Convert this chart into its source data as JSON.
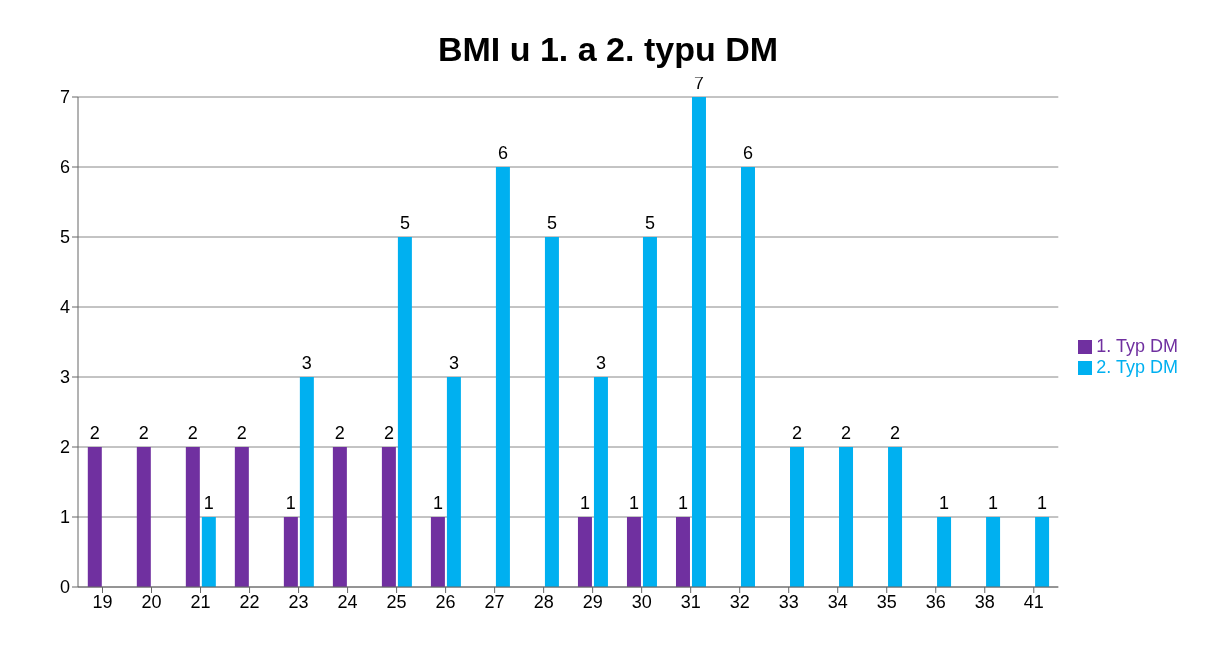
{
  "chart_data": {
    "type": "bar",
    "title": "BMI u 1. a 2. typu DM",
    "categories": [
      "19",
      "20",
      "21",
      "22",
      "23",
      "24",
      "25",
      "26",
      "27",
      "28",
      "29",
      "30",
      "31",
      "32",
      "33",
      "34",
      "35",
      "36",
      "38",
      "41"
    ],
    "series": [
      {
        "name": "1. Typ DM",
        "color": "#7030a0",
        "values": [
          2,
          2,
          2,
          2,
          1,
          2,
          2,
          1,
          0,
          0,
          1,
          1,
          1,
          0,
          0,
          0,
          0,
          0,
          0,
          0
        ],
        "value_labels": [
          "2",
          "2",
          "2",
          "2",
          "1",
          "2",
          "2",
          "1",
          null,
          null,
          "1",
          "1",
          "1",
          null,
          null,
          null,
          null,
          null,
          null,
          null
        ]
      },
      {
        "name": "2. Typ DM",
        "color": "#00b0f0",
        "values": [
          0,
          0,
          1,
          0,
          3,
          0,
          5,
          3,
          6,
          5,
          3,
          5,
          7,
          6,
          2,
          2,
          2,
          1,
          1,
          1
        ],
        "value_labels": [
          null,
          null,
          "1",
          null,
          "3",
          null,
          "5",
          "3",
          "6",
          "5",
          "3",
          "5",
          "7",
          "6",
          "2",
          "2",
          "2",
          "1",
          "1",
          "1"
        ]
      }
    ],
    "ylim": [
      0,
      7
    ],
    "yticks": [
      0,
      1,
      2,
      3,
      4,
      5,
      6,
      7
    ],
    "grid": "y",
    "legend": "right"
  }
}
